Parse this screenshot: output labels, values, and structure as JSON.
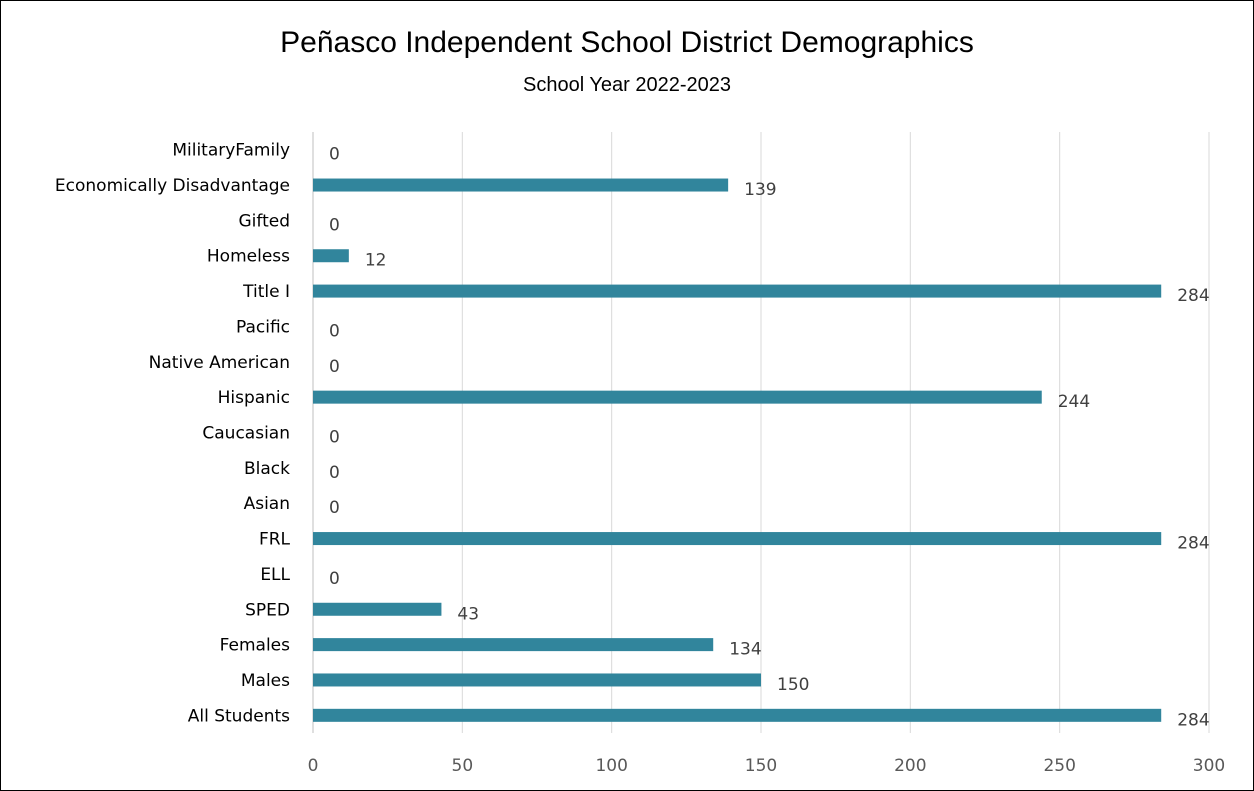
{
  "chart_data": {
    "type": "bar",
    "orientation": "horizontal",
    "title": "Peñasco Independent School District Demographics",
    "subtitle": "School Year 2022-2023",
    "categories": [
      "All Students",
      "Males",
      "Females",
      "SPED",
      "ELL",
      "FRL",
      "Asian",
      "Black",
      "Caucasian",
      "Hispanic",
      "Native American",
      "Pacific",
      "Title I",
      "Homeless",
      "Gifted",
      "Economically Disadvantage",
      "MilitaryFamily"
    ],
    "values": [
      284,
      150,
      134,
      43,
      0,
      284,
      0,
      0,
      0,
      244,
      0,
      0,
      284,
      12,
      0,
      139,
      0
    ],
    "xlim": [
      0,
      300
    ],
    "xticks": [
      0,
      50,
      100,
      150,
      200,
      250,
      300
    ],
    "grid": true,
    "legend": "none",
    "data_labels": true,
    "bar_color": "#31859C",
    "grid_color": "#D9D9D9"
  }
}
